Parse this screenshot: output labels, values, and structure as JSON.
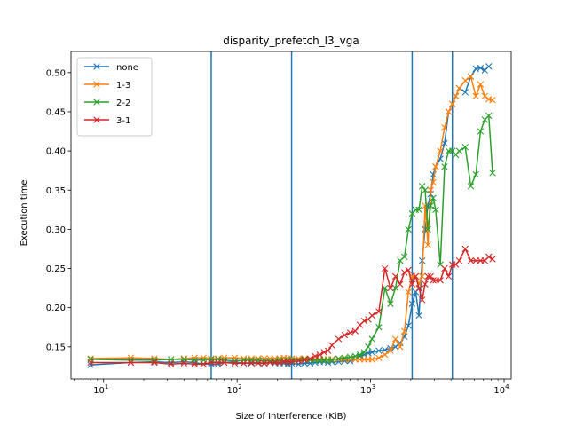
{
  "chart_data": {
    "type": "line",
    "title": "disparity_prefetch_l3_vga",
    "xlabel": "Size of Interference (KiB)",
    "ylabel": "Execution time",
    "xscale": "log",
    "xlim": [
      5.7,
      11300
    ],
    "ylim": [
      0.109,
      0.527
    ],
    "xticks": [
      {
        "value": 10,
        "label": "10",
        "exp": "1"
      },
      {
        "value": 100,
        "label": "10",
        "exp": "2"
      },
      {
        "value": 1000,
        "label": "10",
        "exp": "3"
      },
      {
        "value": 10000,
        "label": "10",
        "exp": "4"
      }
    ],
    "yticks": [
      0.15,
      0.2,
      0.25,
      0.3,
      0.35,
      0.4,
      0.45,
      0.5
    ],
    "ytick_labels": [
      "0.15",
      "0.20",
      "0.25",
      "0.30",
      "0.35",
      "0.40",
      "0.45",
      "0.50"
    ],
    "marker": "x",
    "vlines": [
      64,
      256,
      2048,
      4096
    ],
    "vline_color": "#1f77b4",
    "legend_position": "upper-left",
    "series": [
      {
        "name": "none",
        "color": "#1f77b4",
        "points": [
          [
            8,
            0.127
          ],
          [
            16,
            0.13
          ],
          [
            24,
            0.131
          ],
          [
            32,
            0.13
          ],
          [
            40,
            0.131
          ],
          [
            48,
            0.13
          ],
          [
            56,
            0.128
          ],
          [
            64,
            0.128
          ],
          [
            72,
            0.128
          ],
          [
            80,
            0.13
          ],
          [
            96,
            0.131
          ],
          [
            112,
            0.129
          ],
          [
            128,
            0.13
          ],
          [
            144,
            0.13
          ],
          [
            160,
            0.129
          ],
          [
            176,
            0.13
          ],
          [
            192,
            0.129
          ],
          [
            208,
            0.129
          ],
          [
            224,
            0.129
          ],
          [
            240,
            0.128
          ],
          [
            256,
            0.129
          ],
          [
            288,
            0.128
          ],
          [
            320,
            0.129
          ],
          [
            352,
            0.129
          ],
          [
            384,
            0.13
          ],
          [
            416,
            0.131
          ],
          [
            448,
            0.131
          ],
          [
            480,
            0.13
          ],
          [
            512,
            0.131
          ],
          [
            576,
            0.131
          ],
          [
            640,
            0.132
          ],
          [
            704,
            0.132
          ],
          [
            768,
            0.134
          ],
          [
            832,
            0.138
          ],
          [
            896,
            0.14
          ],
          [
            960,
            0.142
          ],
          [
            1024,
            0.143
          ],
          [
            1152,
            0.145
          ],
          [
            1280,
            0.146
          ],
          [
            1408,
            0.148
          ],
          [
            1536,
            0.15
          ],
          [
            1664,
            0.155
          ],
          [
            1792,
            0.163
          ],
          [
            1920,
            0.177
          ],
          [
            2048,
            0.205
          ],
          [
            2176,
            0.22
          ],
          [
            2304,
            0.19
          ],
          [
            2432,
            0.26
          ],
          [
            2560,
            0.3
          ],
          [
            2688,
            0.33
          ],
          [
            2816,
            0.345
          ],
          [
            2944,
            0.37
          ],
          [
            3072,
            0.38
          ],
          [
            3328,
            0.39
          ],
          [
            3584,
            0.41
          ],
          [
            3840,
            0.45
          ],
          [
            4096,
            0.46
          ],
          [
            4352,
            0.47
          ],
          [
            4608,
            0.48
          ],
          [
            5120,
            0.475
          ],
          [
            5632,
            0.495
          ],
          [
            6144,
            0.505
          ],
          [
            6656,
            0.506
          ],
          [
            7168,
            0.503
          ],
          [
            7680,
            0.508
          ]
        ]
      },
      {
        "name": "1-3",
        "color": "#ff7f0e",
        "points": [
          [
            8,
            0.135
          ],
          [
            16,
            0.136
          ],
          [
            24,
            0.135
          ],
          [
            32,
            0.134
          ],
          [
            40,
            0.135
          ],
          [
            48,
            0.136
          ],
          [
            56,
            0.136
          ],
          [
            64,
            0.135
          ],
          [
            72,
            0.135
          ],
          [
            80,
            0.136
          ],
          [
            96,
            0.136
          ],
          [
            112,
            0.135
          ],
          [
            128,
            0.135
          ],
          [
            144,
            0.135
          ],
          [
            160,
            0.135
          ],
          [
            176,
            0.135
          ],
          [
            192,
            0.135
          ],
          [
            208,
            0.135
          ],
          [
            224,
            0.136
          ],
          [
            240,
            0.135
          ],
          [
            256,
            0.135
          ],
          [
            288,
            0.135
          ],
          [
            320,
            0.135
          ],
          [
            352,
            0.134
          ],
          [
            384,
            0.134
          ],
          [
            416,
            0.134
          ],
          [
            448,
            0.134
          ],
          [
            480,
            0.134
          ],
          [
            512,
            0.134
          ],
          [
            576,
            0.134
          ],
          [
            640,
            0.134
          ],
          [
            704,
            0.134
          ],
          [
            768,
            0.134
          ],
          [
            832,
            0.134
          ],
          [
            896,
            0.134
          ],
          [
            960,
            0.134
          ],
          [
            1024,
            0.134
          ],
          [
            1152,
            0.136
          ],
          [
            1280,
            0.14
          ],
          [
            1408,
            0.145
          ],
          [
            1536,
            0.16
          ],
          [
            1664,
            0.15
          ],
          [
            1792,
            0.17
          ],
          [
            1920,
            0.22
          ],
          [
            2048,
            0.24
          ],
          [
            2176,
            0.24
          ],
          [
            2304,
            0.23
          ],
          [
            2432,
            0.24
          ],
          [
            2560,
            0.33
          ],
          [
            2688,
            0.28
          ],
          [
            2816,
            0.35
          ],
          [
            2944,
            0.36
          ],
          [
            3072,
            0.38
          ],
          [
            3328,
            0.4
          ],
          [
            3584,
            0.43
          ],
          [
            3840,
            0.45
          ],
          [
            4096,
            0.46
          ],
          [
            4352,
            0.47
          ],
          [
            4608,
            0.48
          ],
          [
            5120,
            0.49
          ],
          [
            5632,
            0.495
          ],
          [
            6144,
            0.47
          ],
          [
            6656,
            0.485
          ],
          [
            7168,
            0.47
          ],
          [
            7680,
            0.466
          ],
          [
            8192,
            0.465
          ]
        ]
      },
      {
        "name": "2-2",
        "color": "#2ca02c",
        "points": [
          [
            8,
            0.134
          ],
          [
            16,
            0.133
          ],
          [
            24,
            0.133
          ],
          [
            32,
            0.134
          ],
          [
            40,
            0.134
          ],
          [
            48,
            0.133
          ],
          [
            56,
            0.133
          ],
          [
            64,
            0.134
          ],
          [
            72,
            0.134
          ],
          [
            80,
            0.133
          ],
          [
            96,
            0.132
          ],
          [
            112,
            0.133
          ],
          [
            128,
            0.133
          ],
          [
            144,
            0.133
          ],
          [
            160,
            0.132
          ],
          [
            176,
            0.132
          ],
          [
            192,
            0.132
          ],
          [
            208,
            0.133
          ],
          [
            224,
            0.132
          ],
          [
            240,
            0.133
          ],
          [
            256,
            0.133
          ],
          [
            288,
            0.133
          ],
          [
            320,
            0.134
          ],
          [
            352,
            0.133
          ],
          [
            384,
            0.133
          ],
          [
            416,
            0.133
          ],
          [
            448,
            0.133
          ],
          [
            480,
            0.133
          ],
          [
            512,
            0.133
          ],
          [
            576,
            0.135
          ],
          [
            640,
            0.136
          ],
          [
            704,
            0.137
          ],
          [
            768,
            0.138
          ],
          [
            832,
            0.14
          ],
          [
            896,
            0.143
          ],
          [
            960,
            0.15
          ],
          [
            1024,
            0.16
          ],
          [
            1152,
            0.175
          ],
          [
            1280,
            0.225
          ],
          [
            1408,
            0.205
          ],
          [
            1536,
            0.225
          ],
          [
            1664,
            0.26
          ],
          [
            1792,
            0.265
          ],
          [
            1920,
            0.3
          ],
          [
            2048,
            0.32
          ],
          [
            2176,
            0.325
          ],
          [
            2304,
            0.325
          ],
          [
            2432,
            0.355
          ],
          [
            2560,
            0.35
          ],
          [
            2688,
            0.3
          ],
          [
            2816,
            0.33
          ],
          [
            2944,
            0.34
          ],
          [
            3072,
            0.325
          ],
          [
            3328,
            0.255
          ],
          [
            3584,
            0.38
          ],
          [
            3840,
            0.4
          ],
          [
            4096,
            0.4
          ],
          [
            4352,
            0.395
          ],
          [
            4608,
            0.4
          ],
          [
            5120,
            0.405
          ],
          [
            5632,
            0.355
          ],
          [
            6144,
            0.37
          ],
          [
            6656,
            0.425
          ],
          [
            7168,
            0.44
          ],
          [
            7680,
            0.445
          ],
          [
            8192,
            0.372
          ]
        ]
      },
      {
        "name": "3-1",
        "color": "#d62728",
        "points": [
          [
            8,
            0.13
          ],
          [
            16,
            0.13
          ],
          [
            24,
            0.13
          ],
          [
            32,
            0.128
          ],
          [
            40,
            0.129
          ],
          [
            48,
            0.128
          ],
          [
            56,
            0.128
          ],
          [
            64,
            0.13
          ],
          [
            72,
            0.13
          ],
          [
            80,
            0.13
          ],
          [
            96,
            0.129
          ],
          [
            112,
            0.129
          ],
          [
            128,
            0.129
          ],
          [
            144,
            0.129
          ],
          [
            160,
            0.129
          ],
          [
            176,
            0.13
          ],
          [
            192,
            0.13
          ],
          [
            208,
            0.13
          ],
          [
            224,
            0.131
          ],
          [
            240,
            0.131
          ],
          [
            256,
            0.131
          ],
          [
            288,
            0.132
          ],
          [
            320,
            0.133
          ],
          [
            352,
            0.135
          ],
          [
            384,
            0.138
          ],
          [
            416,
            0.14
          ],
          [
            448,
            0.143
          ],
          [
            480,
            0.145
          ],
          [
            512,
            0.152
          ],
          [
            576,
            0.16
          ],
          [
            640,
            0.165
          ],
          [
            704,
            0.168
          ],
          [
            768,
            0.17
          ],
          [
            832,
            0.178
          ],
          [
            896,
            0.183
          ],
          [
            960,
            0.185
          ],
          [
            1024,
            0.19
          ],
          [
            1152,
            0.195
          ],
          [
            1280,
            0.25
          ],
          [
            1408,
            0.225
          ],
          [
            1536,
            0.24
          ],
          [
            1664,
            0.23
          ],
          [
            1792,
            0.245
          ],
          [
            1920,
            0.248
          ],
          [
            2048,
            0.23
          ],
          [
            2176,
            0.24
          ],
          [
            2304,
            0.225
          ],
          [
            2432,
            0.21
          ],
          [
            2560,
            0.23
          ],
          [
            2688,
            0.24
          ],
          [
            2816,
            0.24
          ],
          [
            2944,
            0.235
          ],
          [
            3072,
            0.235
          ],
          [
            3328,
            0.235
          ],
          [
            3584,
            0.25
          ],
          [
            3840,
            0.24
          ],
          [
            4096,
            0.255
          ],
          [
            4352,
            0.255
          ],
          [
            4608,
            0.26
          ],
          [
            5120,
            0.275
          ],
          [
            5632,
            0.26
          ],
          [
            6144,
            0.26
          ],
          [
            6656,
            0.26
          ],
          [
            7168,
            0.26
          ],
          [
            7680,
            0.265
          ],
          [
            8192,
            0.262
          ]
        ]
      }
    ]
  }
}
